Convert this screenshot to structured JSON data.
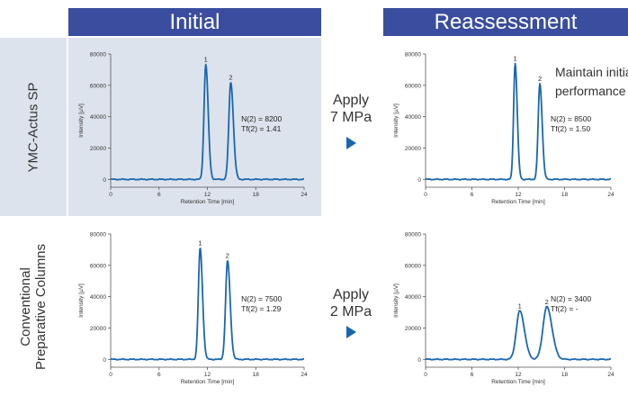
{
  "headers": {
    "initial": "Initial",
    "reassessment": "Reassessment"
  },
  "rows": {
    "ymc": {
      "label": "YMC-Actus SP"
    },
    "conventional": {
      "label_line1": "Conventional",
      "label_line2": "Preparative Columns"
    }
  },
  "transitions": [
    {
      "line1": "Apply",
      "line2": "7 MPa"
    },
    {
      "line1": "Apply",
      "line2": "2 MPa"
    }
  ],
  "annotation": {
    "line1": "Maintain initial",
    "line2": "performance"
  },
  "colors": {
    "header_bg": "#3a4d9e",
    "panel_bg": "#dde3ec",
    "trace": "#1a67b0",
    "arrow": "#1a67b0"
  },
  "chart_data": [
    {
      "type": "line",
      "row": "YMC-Actus SP",
      "column": "Initial",
      "xlabel": "Retention Time [min]",
      "ylabel": "Intensity [µV]",
      "xlim": [
        0,
        24
      ],
      "ylim": [
        -5000,
        80000
      ],
      "xticks": [
        0,
        6,
        12,
        18,
        24
      ],
      "yticks": [
        0,
        20000,
        40000,
        60000,
        80000
      ],
      "peaks": [
        {
          "label": "1",
          "x": 11.8,
          "height": 73500,
          "width": 0.22
        },
        {
          "label": "2",
          "x": 14.9,
          "height": 62000,
          "width": 0.24
        }
      ],
      "stats": {
        "line1": "N(2) = 8200",
        "line2": "Tf(2) = 1.41"
      }
    },
    {
      "type": "line",
      "row": "YMC-Actus SP",
      "column": "Reassessment",
      "xlabel": "Retention Time [min]",
      "ylabel": "Intensity [µV]",
      "xlim": [
        0,
        24
      ],
      "ylim": [
        -5000,
        80000
      ],
      "xticks": [
        0,
        6,
        12,
        18,
        24
      ],
      "yticks": [
        0,
        20000,
        40000,
        60000,
        80000
      ],
      "peaks": [
        {
          "label": "1",
          "x": 11.6,
          "height": 74000,
          "width": 0.2
        },
        {
          "label": "2",
          "x": 14.8,
          "height": 61000,
          "width": 0.22
        }
      ],
      "stats": {
        "line1": "N(2) = 8500",
        "line2": "Tf(2) = 1.50"
      }
    },
    {
      "type": "line",
      "row": "Conventional Preparative Columns",
      "column": "Initial",
      "xlabel": "Retention Time [min]",
      "ylabel": "Intensity [µV]",
      "xlim": [
        0,
        24
      ],
      "ylim": [
        -5000,
        80000
      ],
      "xticks": [
        0,
        6,
        12,
        18,
        24
      ],
      "yticks": [
        0,
        20000,
        40000,
        60000,
        80000
      ],
      "peaks": [
        {
          "label": "1",
          "x": 11.1,
          "height": 71000,
          "width": 0.22
        },
        {
          "label": "2",
          "x": 14.5,
          "height": 63000,
          "width": 0.24
        }
      ],
      "stats": {
        "line1": "N(2) = 7500",
        "line2": "Tf(2) = 1.29"
      }
    },
    {
      "type": "line",
      "row": "Conventional Preparative Columns",
      "column": "Reassessment",
      "xlabel": "Retention Time [min]",
      "ylabel": "Intensity [µV]",
      "xlim": [
        0,
        24
      ],
      "ylim": [
        -5000,
        80000
      ],
      "xticks": [
        0,
        6,
        12,
        18,
        24
      ],
      "yticks": [
        0,
        20000,
        40000,
        60000,
        80000
      ],
      "peaks": [
        {
          "label": "1",
          "x": 12.2,
          "height": 31000,
          "width": 0.45
        },
        {
          "label": "2",
          "x": 15.7,
          "height": 33500,
          "width": 0.5
        }
      ],
      "stats": {
        "line1": "N(2) = 3400",
        "line2": "Tf(2) = -"
      }
    }
  ]
}
